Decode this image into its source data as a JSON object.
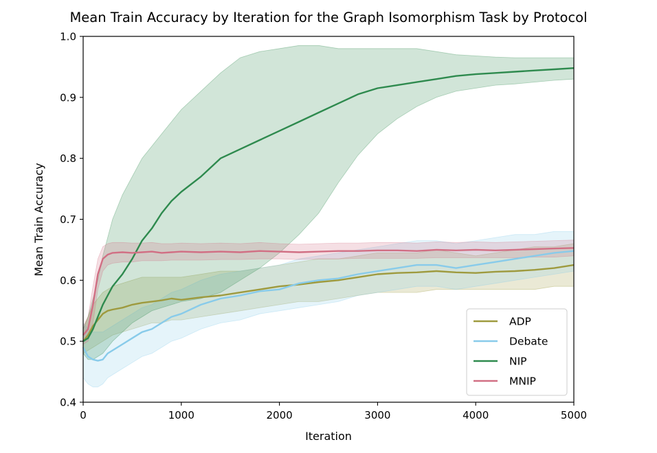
{
  "chart_data": {
    "type": "line",
    "title": "Mean Train Accuracy by Iteration for the Graph Isomorphism Task by Protocol",
    "xlabel": "Iteration",
    "ylabel": "Mean Train Accuracy",
    "xlim": [
      0,
      5000
    ],
    "ylim": [
      0.4,
      1.0
    ],
    "x_ticks": [
      "0",
      "1000",
      "2000",
      "3000",
      "4000",
      "5000"
    ],
    "y_ticks": [
      "0.4",
      "0.5",
      "0.6",
      "0.7",
      "0.8",
      "0.9",
      "1.0"
    ],
    "grid": false,
    "legend_position": "bottom-right",
    "shaded_band": "variability band around each mean line",
    "x": [
      0,
      50,
      100,
      150,
      200,
      250,
      300,
      400,
      500,
      600,
      700,
      800,
      900,
      1000,
      1200,
      1400,
      1600,
      1800,
      2000,
      2200,
      2400,
      2600,
      2800,
      3000,
      3200,
      3400,
      3600,
      3800,
      4000,
      4200,
      4400,
      4600,
      4800,
      5000
    ],
    "series": [
      {
        "name": "ADP",
        "color": "#9e9a3e",
        "values": [
          0.5,
          0.51,
          0.525,
          0.535,
          0.545,
          0.55,
          0.552,
          0.555,
          0.56,
          0.563,
          0.565,
          0.567,
          0.57,
          0.568,
          0.572,
          0.575,
          0.58,
          0.585,
          0.59,
          0.593,
          0.597,
          0.6,
          0.605,
          0.61,
          0.612,
          0.613,
          0.615,
          0.613,
          0.612,
          0.614,
          0.615,
          0.617,
          0.62,
          0.625
        ],
        "lower": [
          0.48,
          0.485,
          0.49,
          0.495,
          0.5,
          0.505,
          0.51,
          0.515,
          0.52,
          0.525,
          0.53,
          0.53,
          0.535,
          0.535,
          0.54,
          0.545,
          0.55,
          0.555,
          0.56,
          0.565,
          0.565,
          0.57,
          0.575,
          0.58,
          0.58,
          0.58,
          0.585,
          0.585,
          0.585,
          0.585,
          0.585,
          0.585,
          0.59,
          0.59
        ],
        "upper": [
          0.52,
          0.54,
          0.56,
          0.57,
          0.58,
          0.585,
          0.59,
          0.595,
          0.6,
          0.605,
          0.605,
          0.605,
          0.605,
          0.605,
          0.61,
          0.615,
          0.615,
          0.62,
          0.625,
          0.63,
          0.635,
          0.635,
          0.64,
          0.645,
          0.645,
          0.645,
          0.65,
          0.645,
          0.64,
          0.645,
          0.65,
          0.655,
          0.655,
          0.66
        ]
      },
      {
        "name": "Debate",
        "color": "#88cbea",
        "values": [
          0.49,
          0.475,
          0.47,
          0.468,
          0.47,
          0.48,
          0.485,
          0.495,
          0.505,
          0.515,
          0.52,
          0.53,
          0.54,
          0.545,
          0.56,
          0.57,
          0.575,
          0.582,
          0.585,
          0.595,
          0.6,
          0.603,
          0.61,
          0.615,
          0.62,
          0.625,
          0.625,
          0.62,
          0.625,
          0.63,
          0.635,
          0.64,
          0.645,
          0.648
        ],
        "lower": [
          0.44,
          0.43,
          0.425,
          0.425,
          0.43,
          0.44,
          0.445,
          0.455,
          0.465,
          0.475,
          0.48,
          0.49,
          0.5,
          0.505,
          0.52,
          0.53,
          0.535,
          0.545,
          0.55,
          0.555,
          0.56,
          0.565,
          0.575,
          0.58,
          0.585,
          0.59,
          0.59,
          0.585,
          0.59,
          0.595,
          0.6,
          0.605,
          0.61,
          0.615
        ],
        "upper": [
          0.53,
          0.52,
          0.515,
          0.515,
          0.515,
          0.52,
          0.525,
          0.535,
          0.545,
          0.555,
          0.56,
          0.57,
          0.58,
          0.585,
          0.6,
          0.61,
          0.615,
          0.62,
          0.625,
          0.635,
          0.64,
          0.645,
          0.65,
          0.655,
          0.66,
          0.665,
          0.665,
          0.66,
          0.665,
          0.67,
          0.675,
          0.675,
          0.68,
          0.68
        ]
      },
      {
        "name": "NIP",
        "color": "#2e8a4e",
        "values": [
          0.5,
          0.505,
          0.52,
          0.54,
          0.56,
          0.575,
          0.59,
          0.61,
          0.635,
          0.665,
          0.685,
          0.71,
          0.73,
          0.745,
          0.77,
          0.8,
          0.815,
          0.83,
          0.845,
          0.86,
          0.875,
          0.89,
          0.905,
          0.915,
          0.92,
          0.925,
          0.93,
          0.935,
          0.938,
          0.94,
          0.942,
          0.944,
          0.946,
          0.948
        ],
        "lower": [
          0.48,
          0.47,
          0.47,
          0.475,
          0.48,
          0.49,
          0.5,
          0.515,
          0.53,
          0.54,
          0.55,
          0.555,
          0.56,
          0.565,
          0.57,
          0.58,
          0.6,
          0.62,
          0.645,
          0.675,
          0.71,
          0.76,
          0.805,
          0.84,
          0.865,
          0.885,
          0.9,
          0.91,
          0.915,
          0.92,
          0.922,
          0.925,
          0.928,
          0.93
        ],
        "upper": [
          0.52,
          0.54,
          0.57,
          0.6,
          0.64,
          0.67,
          0.7,
          0.74,
          0.77,
          0.8,
          0.82,
          0.84,
          0.86,
          0.88,
          0.91,
          0.94,
          0.965,
          0.975,
          0.98,
          0.985,
          0.985,
          0.98,
          0.98,
          0.98,
          0.98,
          0.98,
          0.975,
          0.97,
          0.968,
          0.966,
          0.965,
          0.965,
          0.965,
          0.965
        ]
      },
      {
        "name": "MNIP",
        "color": "#d16f84",
        "values": [
          0.51,
          0.52,
          0.56,
          0.61,
          0.635,
          0.642,
          0.645,
          0.646,
          0.645,
          0.646,
          0.647,
          0.645,
          0.646,
          0.647,
          0.646,
          0.647,
          0.646,
          0.648,
          0.647,
          0.646,
          0.647,
          0.648,
          0.648,
          0.649,
          0.649,
          0.648,
          0.65,
          0.649,
          0.65,
          0.649,
          0.65,
          0.651,
          0.652,
          0.653
        ],
        "lower": [
          0.495,
          0.5,
          0.53,
          0.585,
          0.615,
          0.625,
          0.628,
          0.63,
          0.63,
          0.632,
          0.632,
          0.632,
          0.633,
          0.633,
          0.633,
          0.634,
          0.634,
          0.635,
          0.635,
          0.634,
          0.635,
          0.635,
          0.636,
          0.636,
          0.636,
          0.636,
          0.637,
          0.637,
          0.637,
          0.637,
          0.637,
          0.638,
          0.638,
          0.64
        ],
        "upper": [
          0.525,
          0.54,
          0.59,
          0.635,
          0.655,
          0.66,
          0.662,
          0.662,
          0.661,
          0.661,
          0.662,
          0.66,
          0.66,
          0.661,
          0.66,
          0.661,
          0.66,
          0.662,
          0.66,
          0.659,
          0.66,
          0.661,
          0.661,
          0.662,
          0.662,
          0.661,
          0.663,
          0.662,
          0.663,
          0.662,
          0.663,
          0.664,
          0.665,
          0.666
        ]
      }
    ]
  }
}
